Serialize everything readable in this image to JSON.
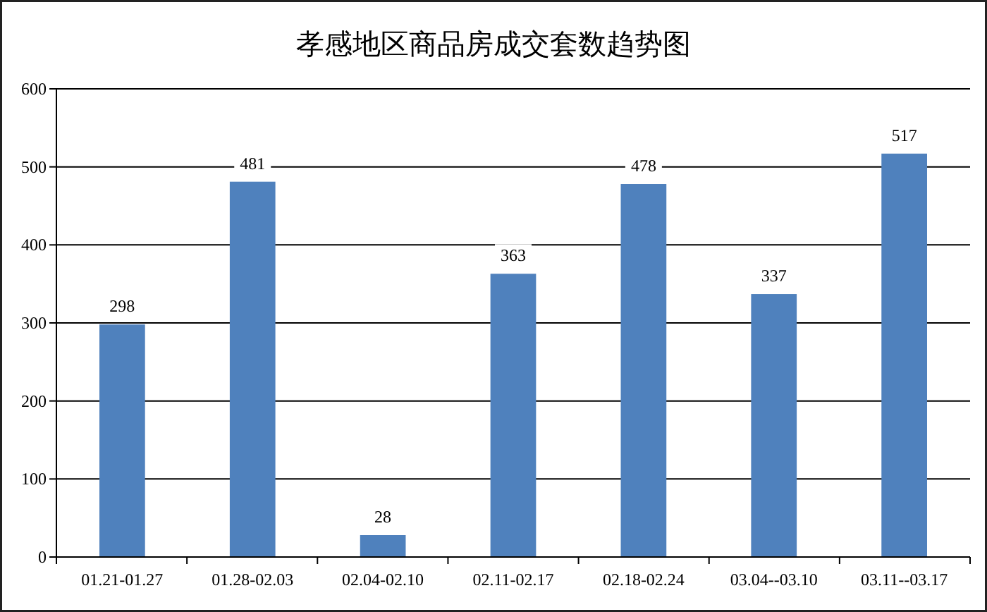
{
  "chart_data": {
    "type": "bar",
    "title": "孝感地区商品房成交套数趋势图",
    "categories": [
      "01.21-01.27",
      "01.28-02.03",
      "02.04-02.10",
      "02.11-02.17",
      "02.18-02.24",
      "03.04--03.10",
      "03.11--03.17"
    ],
    "values": [
      298,
      481,
      28,
      363,
      478,
      337,
      517
    ],
    "color": "#4f81bd",
    "ylim": [
      0,
      600
    ],
    "yticks": [
      0,
      100,
      200,
      300,
      400,
      500,
      600
    ],
    "grid": "y",
    "data_labels": true
  }
}
